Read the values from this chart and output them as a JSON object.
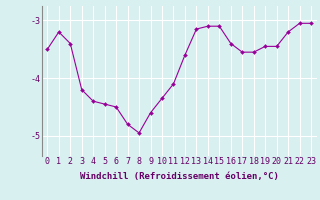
{
  "x": [
    0,
    1,
    2,
    3,
    4,
    5,
    6,
    7,
    8,
    9,
    10,
    11,
    12,
    13,
    14,
    15,
    16,
    17,
    18,
    19,
    20,
    21,
    22,
    23
  ],
  "y": [
    -3.5,
    -3.2,
    -3.4,
    -4.2,
    -4.4,
    -4.45,
    -4.5,
    -4.8,
    -4.95,
    -4.6,
    -4.35,
    -4.1,
    -3.6,
    -3.15,
    -3.1,
    -3.1,
    -3.4,
    -3.55,
    -3.55,
    -3.45,
    -3.45,
    -3.2,
    -3.05,
    -3.05
  ],
  "line_color": "#990099",
  "marker": "D",
  "marker_size": 2.0,
  "bg_color": "#d8f0f0",
  "grid_color": "#ffffff",
  "xlabel": "Windchill (Refroidissement éolien,°C)",
  "xlabel_color": "#660066",
  "ylim": [
    -5.35,
    -2.75
  ],
  "yticks": [
    -5,
    -4,
    -3
  ],
  "xlim": [
    -0.5,
    23.5
  ],
  "label_fontsize": 6.5,
  "tick_fontsize": 6.0
}
